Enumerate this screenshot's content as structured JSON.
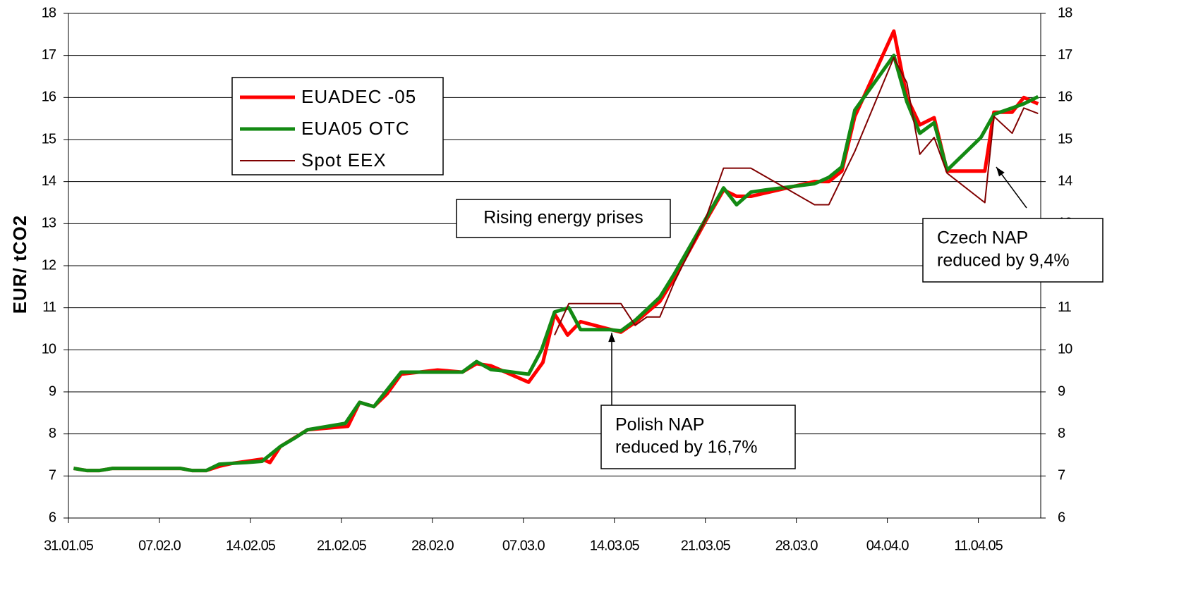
{
  "chart_data": {
    "type": "line",
    "ylabel": "EUR/ tCO2",
    "xlim": [
      0,
      74.8
    ],
    "xticks": [
      {
        "value": 0,
        "label": "31.01.05"
      },
      {
        "value": 7,
        "label": "07.02.0"
      },
      {
        "value": 14,
        "label": "14.02.05"
      },
      {
        "value": 21,
        "label": "21.02.05"
      },
      {
        "value": 28,
        "label": "28.02.0"
      },
      {
        "value": 35,
        "label": "07.03.0"
      },
      {
        "value": 42,
        "label": "14.03.05"
      },
      {
        "value": 49,
        "label": "21.03.05"
      },
      {
        "value": 56,
        "label": "28.03.0"
      },
      {
        "value": 63,
        "label": "04.04.0"
      },
      {
        "value": 70,
        "label": "11.04.05"
      }
    ],
    "ylim": [
      6,
      18
    ],
    "yticks": [
      6,
      7,
      8,
      9,
      10,
      11,
      12,
      13,
      14,
      15,
      16,
      17,
      18
    ],
    "y2lim": [
      6,
      18
    ],
    "y2ticks": [
      6,
      7,
      8,
      9,
      10,
      11,
      12,
      13,
      14,
      15,
      16,
      17,
      18
    ],
    "grid": true,
    "legend": "upper left",
    "series": [
      {
        "name": "EUADEC -05",
        "color": "#ff0000",
        "width": 5,
        "x": [
          0.4,
          1.4,
          2.4,
          3.4,
          6.6,
          8.6,
          9.5,
          10.6,
          11.6,
          12.6,
          14.9,
          15.5,
          16.3,
          18.4,
          21.5,
          22.4,
          23.5,
          24.5,
          25.6,
          28.4,
          30.3,
          31.4,
          32.5,
          33.4,
          35.4,
          36.5,
          37.4,
          38.4,
          39.4,
          42.5,
          43.6,
          45.5,
          46.6,
          49.0,
          50.4,
          51.4,
          52.5,
          57.4,
          58.5,
          59.5,
          60.5,
          63.5,
          64.5,
          65.5,
          66.6,
          67.6,
          70.5,
          71.2,
          72.6,
          73.5,
          74.6
        ],
        "values": [
          7.18,
          7.13,
          7.13,
          7.18,
          7.18,
          7.18,
          7.13,
          7.13,
          7.23,
          7.3,
          7.4,
          7.32,
          7.7,
          8.1,
          8.18,
          8.75,
          8.65,
          8.95,
          9.42,
          9.52,
          9.47,
          9.67,
          9.62,
          9.5,
          9.23,
          9.7,
          10.85,
          10.35,
          10.67,
          10.42,
          10.65,
          11.15,
          11.7,
          13.05,
          13.8,
          13.65,
          13.65,
          14.0,
          14.0,
          14.25,
          15.55,
          17.58,
          16.0,
          15.35,
          15.52,
          14.25,
          14.25,
          15.65,
          15.65,
          16.0,
          15.85
        ]
      },
      {
        "name": "EUA05 OTC",
        "color": "#138a13",
        "width": 5,
        "x": [
          0.4,
          1.4,
          2.4,
          3.4,
          4.5,
          5.6,
          6.6,
          8.6,
          9.5,
          10.6,
          11.6,
          12.6,
          13.7,
          14.9,
          16.3,
          17.4,
          18.4,
          21.3,
          22.4,
          23.5,
          25.6,
          27.7,
          30.3,
          31.4,
          32.5,
          33.4,
          35.4,
          36.4,
          37.4,
          38.5,
          39.4,
          41.6,
          42.5,
          43.6,
          45.5,
          46.6,
          49.0,
          50.4,
          51.4,
          52.5,
          53.6,
          57.4,
          58.5,
          59.5,
          60.5,
          63.5,
          64.5,
          65.5,
          66.6,
          67.6,
          70.2,
          71.2,
          72.6,
          73.5,
          74.6
        ],
        "values": [
          7.18,
          7.13,
          7.13,
          7.18,
          7.18,
          7.18,
          7.18,
          7.18,
          7.13,
          7.13,
          7.28,
          7.3,
          7.32,
          7.35,
          7.7,
          7.9,
          8.1,
          8.25,
          8.75,
          8.65,
          9.47,
          9.47,
          9.47,
          9.72,
          9.53,
          9.5,
          9.42,
          10.0,
          10.9,
          11.0,
          10.48,
          10.48,
          10.45,
          10.7,
          11.25,
          11.8,
          13.1,
          13.85,
          13.45,
          13.75,
          13.8,
          13.95,
          14.1,
          14.35,
          15.7,
          17.0,
          15.9,
          15.15,
          15.4,
          14.27,
          15.05,
          15.6,
          15.75,
          15.85,
          16.02
        ]
      },
      {
        "name": "Spot EEX",
        "color": "#800000",
        "width": 2,
        "x": [
          37.4,
          38.5,
          42.5,
          43.6,
          44.5,
          45.5,
          46.6,
          49.0,
          50.4,
          52.5,
          57.4,
          58.5,
          60.5,
          63.5,
          64.5,
          65.5,
          66.6,
          67.6,
          70.5,
          71.2,
          72.6,
          73.5,
          74.6
        ],
        "values": [
          10.35,
          11.1,
          11.1,
          10.58,
          10.78,
          10.78,
          11.6,
          13.1,
          14.32,
          14.32,
          13.45,
          13.45,
          14.72,
          16.95,
          16.35,
          14.65,
          15.05,
          14.2,
          13.5,
          15.55,
          15.15,
          15.75,
          15.62
        ]
      }
    ],
    "annotations": [
      {
        "text": [
          "Rising energy prises"
        ]
      },
      {
        "text": [
          "Polish NAP",
          "reduced by 16,7%"
        ]
      },
      {
        "text": [
          "Czech NAP",
          "reduced by 9,4%"
        ]
      }
    ]
  }
}
